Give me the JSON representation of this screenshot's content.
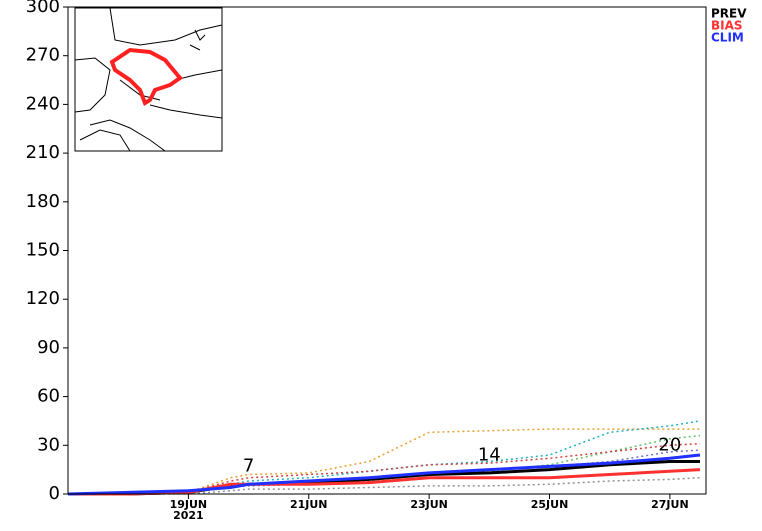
{
  "chart_data": {
    "type": "line",
    "x": [
      17,
      18,
      19,
      19.7,
      20,
      21,
      22,
      23,
      24,
      25,
      26,
      27,
      27.5
    ],
    "xlim": [
      17,
      27.6
    ],
    "xticks": [
      {
        "value": 19,
        "label": "19JUN"
      },
      {
        "value": 21,
        "label": "21JUN"
      },
      {
        "value": 23,
        "label": "23JUN"
      },
      {
        "value": 25,
        "label": "25JUN"
      },
      {
        "value": 27,
        "label": "27JUN"
      }
    ],
    "x_sublabel": "2021",
    "ylim": [
      0,
      300
    ],
    "yticks": [
      0,
      30,
      60,
      90,
      120,
      150,
      180,
      210,
      240,
      270,
      300
    ],
    "members": [
      {
        "color": "#e8a030",
        "values": [
          0,
          0,
          1,
          10,
          12,
          13,
          20,
          38,
          39,
          40,
          40,
          40,
          40
        ]
      },
      {
        "color": "#20b0c0",
        "values": [
          0,
          0,
          1,
          6,
          8,
          10,
          14,
          18,
          20,
          24,
          38,
          42,
          45
        ]
      },
      {
        "color": "#60c060",
        "values": [
          0,
          0,
          1,
          5,
          6,
          7,
          8,
          12,
          14,
          18,
          26,
          34,
          36
        ]
      },
      {
        "color": "#d04040",
        "values": [
          0,
          0,
          1,
          8,
          10,
          12,
          14,
          18,
          19,
          22,
          26,
          30,
          31
        ]
      },
      {
        "color": "#7070d0",
        "values": [
          0,
          0,
          1,
          4,
          5,
          6,
          9,
          13,
          15,
          17,
          20,
          26,
          27
        ]
      },
      {
        "color": "#909090",
        "values": [
          0,
          0,
          0,
          2,
          3,
          3,
          4,
          5,
          5,
          6,
          8,
          9,
          10
        ]
      }
    ],
    "series": [
      {
        "name": "PREV",
        "color": "#000000",
        "values": [
          0,
          0,
          1,
          5,
          6,
          7,
          9,
          12,
          13,
          15,
          18,
          20,
          20
        ]
      },
      {
        "name": "BIAS",
        "color": "#ff3030",
        "values": [
          0,
          0,
          1,
          6,
          6,
          6,
          7,
          10,
          10,
          10,
          12,
          14,
          15
        ]
      },
      {
        "name": "CLIM",
        "color": "#2030ff",
        "values": [
          0,
          1,
          2,
          4,
          6,
          8,
          10,
          13,
          15,
          17,
          19,
          22,
          24
        ]
      }
    ],
    "annotations": [
      {
        "x": 20,
        "y": 7,
        "label": "7"
      },
      {
        "x": 24,
        "y": 14,
        "label": "14"
      },
      {
        "x": 27,
        "y": 20,
        "label": "20"
      }
    ]
  }
}
